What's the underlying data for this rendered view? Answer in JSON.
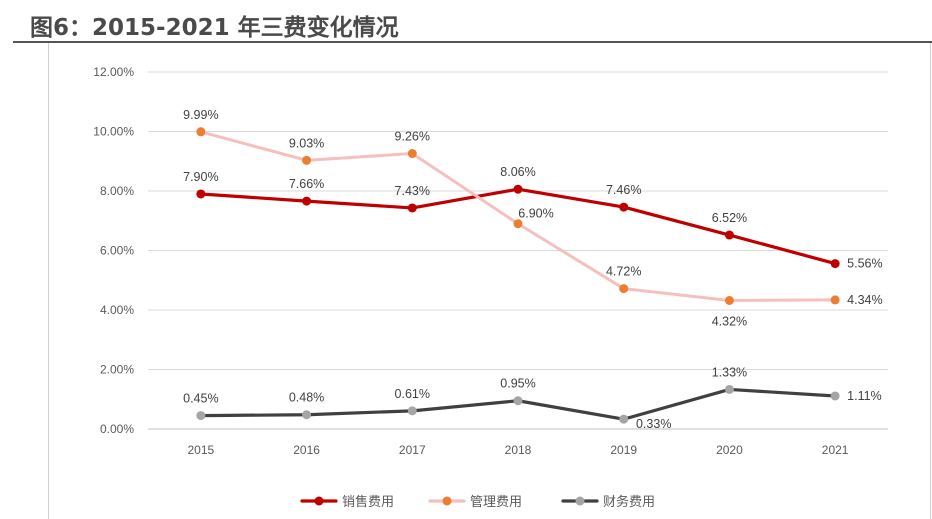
{
  "figure": {
    "title": "图6：2015-2021 年三费变化情况"
  },
  "chart_data": {
    "type": "line",
    "categories": [
      "2015",
      "2016",
      "2017",
      "2018",
      "2019",
      "2020",
      "2021"
    ],
    "ylim": [
      0,
      12
    ],
    "yticks": [
      "0.00%",
      "2.00%",
      "4.00%",
      "6.00%",
      "8.00%",
      "10.00%",
      "12.00%"
    ],
    "grid": true,
    "legend_position": "bottom",
    "series": [
      {
        "name": "销售费用",
        "color": "#c00000",
        "point_color": "#c00000",
        "values": [
          7.9,
          7.66,
          7.43,
          8.06,
          7.46,
          6.52,
          5.56
        ],
        "labels": [
          "7.90%",
          "7.66%",
          "7.43%",
          "8.06%",
          "7.46%",
          "6.52%",
          "5.56%"
        ]
      },
      {
        "name": "管理费用",
        "color": "#f4c0bd",
        "point_color": "#ed7d31",
        "values": [
          9.99,
          9.03,
          9.26,
          6.9,
          4.72,
          4.32,
          4.34
        ],
        "labels": [
          "9.99%",
          "9.03%",
          "9.26%",
          "6.90%",
          "4.72%",
          "4.32%",
          "4.34%"
        ]
      },
      {
        "name": "财务费用",
        "color": "#404040",
        "point_color": "#a5a5a5",
        "values": [
          0.45,
          0.48,
          0.61,
          0.95,
          0.33,
          1.33,
          1.11
        ],
        "labels": [
          "0.45%",
          "0.48%",
          "0.61%",
          "0.95%",
          "0.33%",
          "1.33%",
          "1.11%"
        ]
      }
    ]
  }
}
